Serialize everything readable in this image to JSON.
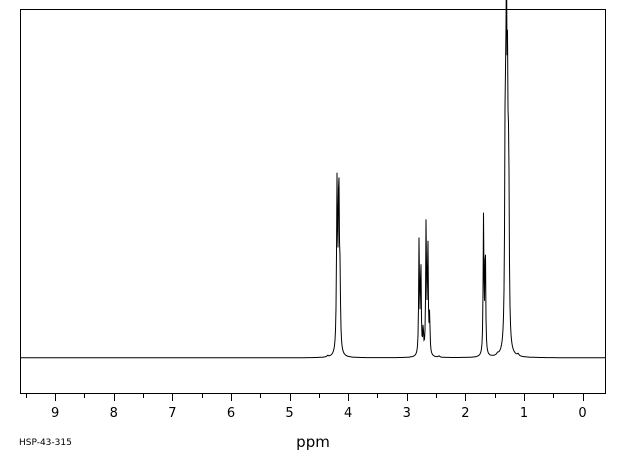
{
  "chart_data": {
    "type": "line",
    "title": "",
    "xlabel": "ppm",
    "ylabel": "",
    "sample_code": "HSP-43-315",
    "x_range": [
      9.6,
      -0.4
    ],
    "y_range": [
      -0.11,
      1.09
    ],
    "x_ticks": [
      "9",
      "8",
      "7",
      "6",
      "5",
      "4",
      "3",
      "2",
      "1",
      "0"
    ],
    "grid": false,
    "series": [
      {
        "peaks": [
          {
            "ppm": 4.19,
            "height": 0.52,
            "width": 0.01
          },
          {
            "ppm": 4.16,
            "height": 0.53,
            "width": 0.01
          },
          {
            "ppm": 4.14,
            "height": 0.2,
            "width": 0.01
          },
          {
            "ppm": 2.79,
            "height": 0.36,
            "width": 0.008
          },
          {
            "ppm": 2.76,
            "height": 0.3,
            "width": 0.008
          },
          {
            "ppm": 2.72,
            "height": 0.08,
            "width": 0.008
          },
          {
            "ppm": 2.67,
            "height": 0.42,
            "width": 0.008
          },
          {
            "ppm": 2.64,
            "height": 0.36,
            "width": 0.008
          },
          {
            "ppm": 2.61,
            "height": 0.12,
            "width": 0.008
          },
          {
            "ppm": 1.69,
            "height": 0.43,
            "width": 0.008
          },
          {
            "ppm": 1.66,
            "height": 0.36,
            "width": 0.008
          },
          {
            "ppm": 1.32,
            "height": 0.66,
            "width": 0.01
          },
          {
            "ppm": 1.3,
            "height": 0.99,
            "width": 0.01
          },
          {
            "ppm": 1.28,
            "height": 0.68,
            "width": 0.01
          },
          {
            "ppm": 1.26,
            "height": 0.52,
            "width": 0.01
          },
          {
            "ppm": 1.1,
            "height": 0.006,
            "width": 0.015
          },
          {
            "ppm": 1.45,
            "height": 0.005,
            "width": 0.015
          },
          {
            "ppm": 4.35,
            "height": 0.004,
            "width": 0.015
          },
          {
            "ppm": 2.45,
            "height": 0.004,
            "width": 0.015
          }
        ]
      }
    ]
  },
  "colors": {
    "trace": "#000000",
    "frame": "#000000",
    "background": "#ffffff"
  }
}
